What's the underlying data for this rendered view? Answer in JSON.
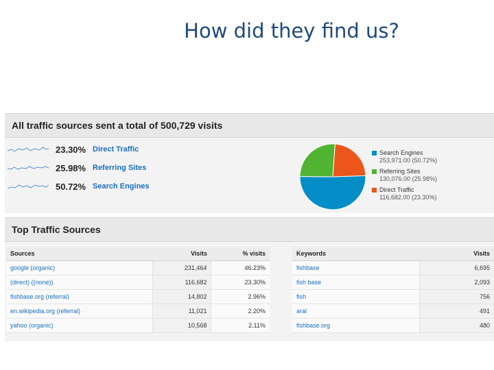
{
  "slide": {
    "title": "How did they find us?"
  },
  "summary": {
    "header": "All traffic sources sent a total of 500,729 visits",
    "sources": [
      {
        "pct": "23.30%",
        "label": "Direct Traffic"
      },
      {
        "pct": "25.98%",
        "label": "Referring Sites"
      },
      {
        "pct": "50.72%",
        "label": "Search Engines"
      }
    ]
  },
  "chart_data": {
    "type": "pie",
    "categories": [
      "Search Engines",
      "Referring Sites",
      "Direct Traffic"
    ],
    "values": [
      50.72,
      25.98,
      23.3
    ],
    "visits_text": [
      "253,971.00 (50.72%)",
      "130,076.00 (25.98%)",
      "116,682.00 (23.30%)"
    ],
    "colors": [
      "#058dc7",
      "#50b432",
      "#ed561b"
    ],
    "legend": "right"
  },
  "top_sources": {
    "header": "Top Traffic Sources",
    "sources_table": {
      "headers": [
        "Sources",
        "Visits",
        "% visits"
      ],
      "rows": [
        [
          "google (organic)",
          "231,464",
          "46.23%"
        ],
        [
          "(direct) ((none))",
          "116,682",
          "23.30%"
        ],
        [
          "fishbase.org (referral)",
          "14,802",
          "2.96%"
        ],
        [
          "en.wikipedia.org (referral)",
          "11,021",
          "2.20%"
        ],
        [
          "yahoo (organic)",
          "10,568",
          "2.11%"
        ]
      ]
    },
    "keywords_table": {
      "headers": [
        "Keywords",
        "Visits"
      ],
      "rows": [
        [
          "fishbase",
          "6,695"
        ],
        [
          "fish base",
          "2,093"
        ],
        [
          "fish",
          "756"
        ],
        [
          "aral",
          "491"
        ],
        [
          "fishbase.org",
          "480"
        ]
      ]
    }
  }
}
